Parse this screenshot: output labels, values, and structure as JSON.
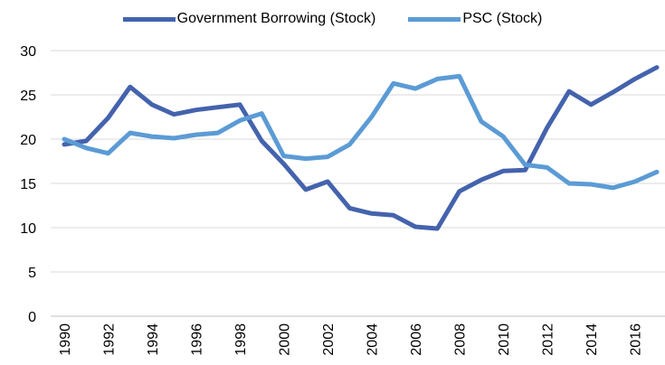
{
  "chart_data": {
    "type": "line",
    "title": "",
    "xlabel": "",
    "ylabel": "",
    "x": [
      1990,
      1991,
      1992,
      1993,
      1994,
      1995,
      1996,
      1997,
      1998,
      1999,
      2000,
      2001,
      2002,
      2003,
      2004,
      2005,
      2006,
      2007,
      2008,
      2009,
      2010,
      2011,
      2012,
      2013,
      2014,
      2015,
      2016,
      2017
    ],
    "x_tick_labels": [
      "1990",
      "1992",
      "1994",
      "1996",
      "1998",
      "2000",
      "2002",
      "2004",
      "2006",
      "2008",
      "2010",
      "2012",
      "2014",
      "2016"
    ],
    "ylim": [
      0,
      30
    ],
    "y_tick_labels": [
      "0",
      "5",
      "10",
      "15",
      "20",
      "25",
      "30"
    ],
    "grid": true,
    "legend_position": "top",
    "series": [
      {
        "name": "Government Borrowing (Stock)",
        "color": "#4463ad",
        "values": [
          19.4,
          19.8,
          22.4,
          25.9,
          23.9,
          22.8,
          23.3,
          23.6,
          23.9,
          19.8,
          17.2,
          14.3,
          15.2,
          12.2,
          11.6,
          11.4,
          10.1,
          9.9,
          14.1,
          15.4,
          16.4,
          16.5,
          21.3,
          25.4,
          23.9,
          25.3,
          26.8,
          28.1
        ]
      },
      {
        "name": "PSC (Stock)",
        "color": "#5b9bd5",
        "values": [
          20.0,
          19.0,
          18.4,
          20.7,
          20.3,
          20.1,
          20.5,
          20.7,
          22.1,
          22.9,
          18.1,
          17.8,
          18.0,
          19.4,
          22.5,
          26.3,
          25.7,
          26.8,
          27.1,
          22.0,
          20.3,
          17.1,
          16.8,
          15.0,
          14.9,
          14.5,
          15.2,
          16.3
        ]
      }
    ]
  }
}
